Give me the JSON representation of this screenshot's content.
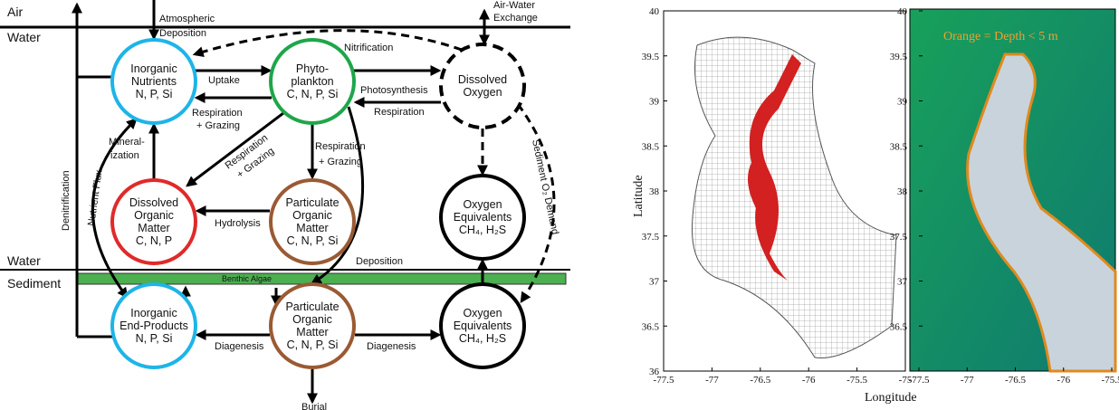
{
  "diagram": {
    "air": "Air",
    "water_top": "Water",
    "water_bottom": "Water",
    "sediment": "Sediment",
    "atmospheric": [
      "Atmospheric",
      "Deposition"
    ],
    "air_water": [
      "Air-Water",
      "Exchange"
    ],
    "nodes": [
      {
        "lines": [
          "Inorganic",
          "Nutrients",
          "N, P, Si"
        ]
      },
      {
        "lines": [
          "Phyto-",
          "plankton",
          "C, N, P, Si"
        ]
      },
      {
        "lines": [
          "Dissolved",
          "Oxygen"
        ]
      },
      {
        "lines": [
          "Dissolved",
          "Organic",
          "Matter",
          "C, N, P"
        ]
      },
      {
        "lines": [
          "Particulate",
          "Organic",
          "Matter",
          "C, N, P, Si"
        ]
      },
      {
        "lines": [
          "Oxygen",
          "Equivalents",
          "CH₄, H₂S"
        ]
      },
      {
        "lines": [
          "Inorganic",
          "End-Products",
          "N, P, Si"
        ]
      },
      {
        "lines": [
          "Particulate",
          "Organic",
          "Matter",
          "C, N, P, Si"
        ]
      },
      {
        "lines": [
          "Oxygen",
          "Equivalents",
          "CH₄, H₂S"
        ]
      }
    ],
    "edges": {
      "uptake": "Uptake",
      "nitrification": "Nitrification",
      "photosynthesis": "Photosynthesis",
      "respiration": "Respiration",
      "resp_grazing_1": [
        "Respiration",
        "+ Grazing"
      ],
      "resp_grazing_2": [
        "Respiration",
        "+ Grazing"
      ],
      "resp_grazing_3": [
        "Respiration",
        "+ Grazing"
      ],
      "mineralization": [
        "Mineral-",
        "ization"
      ],
      "hydrolysis": "Hydrolysis",
      "deposition": "Deposition",
      "diagenesis_1": "Diagenesis",
      "diagenesis_2": "Diagenesis",
      "burial": "Burial",
      "denitrification": "Denitrification",
      "nutrient_flux": "Nutrient Flux",
      "sediment_o2": "Sediment O₂ Demand",
      "benthic": "Benthic Algae"
    }
  },
  "maps": {
    "xlabel": "Longitude",
    "ylabel": "Latitude",
    "legend": "Orange = Depth < 5 m",
    "left": {
      "xticks": [
        "-77.5",
        "-77",
        "-76.5",
        "-76",
        "-75.5",
        "-75"
      ],
      "yticks": [
        "40",
        "39.5",
        "39",
        "38.5",
        "38",
        "37.5",
        "37",
        "36.5",
        "36"
      ]
    },
    "right": {
      "xticks": [
        "-77.5",
        "-77",
        "-76.5",
        "-76",
        "-75.5"
      ],
      "yticks": [
        "40",
        "39.5",
        "39",
        "38.5",
        "38",
        "37.5",
        "37",
        "36.5"
      ]
    }
  }
}
